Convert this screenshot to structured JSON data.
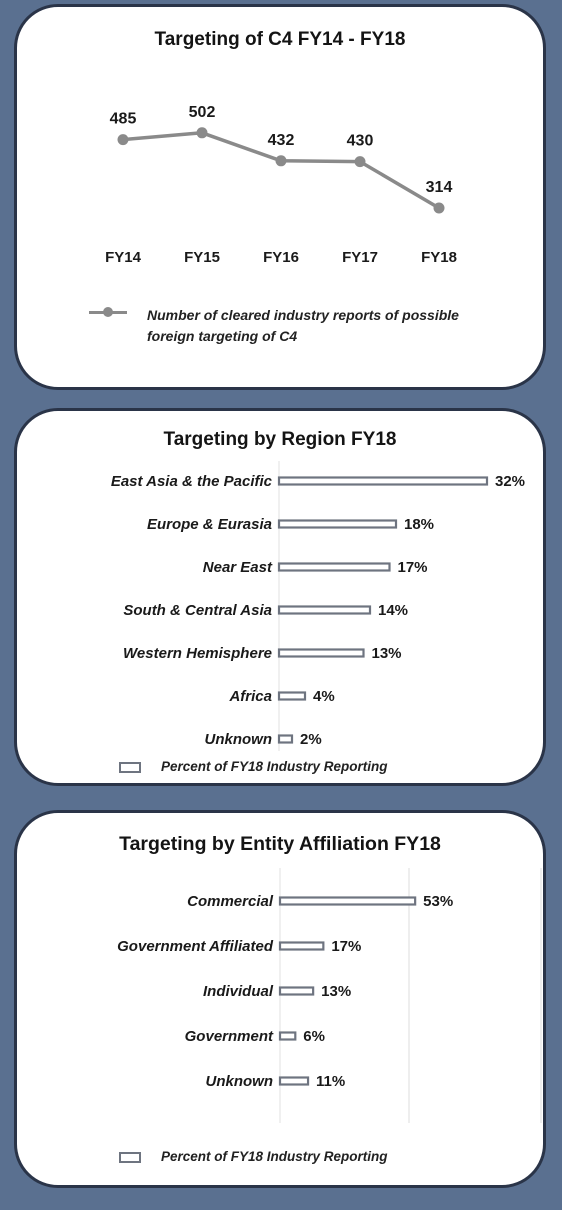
{
  "chart_data": [
    {
      "type": "line",
      "title": "Targeting of C4 FY14 - FY18",
      "categories": [
        "FY14",
        "FY15",
        "FY16",
        "FY17",
        "FY18"
      ],
      "series": [
        {
          "name": "Number of cleared industry reports of possible foreign targeting of C4",
          "values": [
            485,
            502,
            432,
            430,
            314
          ]
        }
      ],
      "legend": "bottom",
      "legend_line1": "Number of cleared industry reports of possible",
      "legend_line2": "foreign targeting of C4",
      "color": "#8a8a8a"
    },
    {
      "type": "bar",
      "orientation": "horizontal",
      "title": "Targeting by Region FY18",
      "categories": [
        "East Asia & the Pacific",
        "Europe & Eurasia",
        "Near East",
        "South & Central Asia",
        "Western Hemisphere",
        "Africa",
        "Unknown"
      ],
      "values": [
        32,
        18,
        17,
        14,
        13,
        4,
        2
      ],
      "value_labels": [
        "32%",
        "18%",
        "17%",
        "14%",
        "13%",
        "4%",
        "2%"
      ],
      "series_name": "Percent of FY18 Industry Reporting",
      "legend": "bottom",
      "color": "#6e7480"
    },
    {
      "type": "bar",
      "orientation": "horizontal",
      "title": "Targeting by Entity Affiliation FY18",
      "categories": [
        "Commercial",
        "Government Affiliated",
        "Individual",
        "Government",
        "Unknown"
      ],
      "values": [
        53,
        17,
        13,
        6,
        11
      ],
      "value_labels": [
        "53%",
        "17%",
        "13%",
        "6%",
        "11%"
      ],
      "series_name": "Percent of FY18 Industry Reporting",
      "legend": "bottom",
      "grid": true,
      "color": "#6e7480"
    }
  ]
}
